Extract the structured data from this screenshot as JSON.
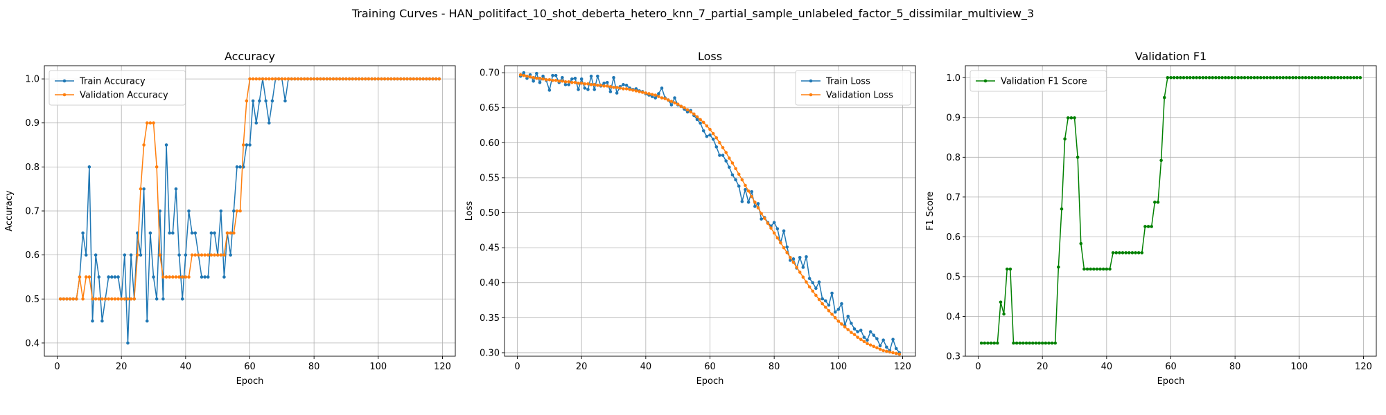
{
  "suptitle": "Training Curves - HAN_politifact_10_shot_deberta_hetero_knn_7_partial_sample_unlabeled_factor_5_dissimilar_multiview_3",
  "colors": {
    "blue": "#1f77b4",
    "orange": "#ff7f0e",
    "green": "#008000",
    "grid": "#b0b0b0"
  },
  "chart_data": [
    {
      "type": "line",
      "title": "Accuracy",
      "xlabel": "Epoch",
      "ylabel": "Accuracy",
      "xlim": [
        -4,
        124
      ],
      "ylim": [
        0.37,
        1.03
      ],
      "xticks": [
        0,
        20,
        40,
        60,
        80,
        100,
        120
      ],
      "yticks": [
        0.4,
        0.5,
        0.6,
        0.7,
        0.8,
        0.9,
        1.0
      ],
      "ytick_format": 1,
      "grid": true,
      "legend": "upper-left",
      "series": [
        {
          "name": "Train Accuracy",
          "color": "#1f77b4",
          "x_start": 1,
          "values": [
            0.5,
            0.5,
            0.5,
            0.5,
            0.5,
            0.5,
            0.55,
            0.65,
            0.6,
            0.8,
            0.45,
            0.6,
            0.55,
            0.45,
            0.5,
            0.55,
            0.55,
            0.55,
            0.55,
            0.5,
            0.6,
            0.4,
            0.6,
            0.5,
            0.65,
            0.6,
            0.75,
            0.45,
            0.65,
            0.55,
            0.5,
            0.7,
            0.5,
            0.85,
            0.65,
            0.65,
            0.75,
            0.6,
            0.5,
            0.6,
            0.7,
            0.65,
            0.65,
            0.6,
            0.55,
            0.55,
            0.55,
            0.65,
            0.65,
            0.6,
            0.7,
            0.55,
            0.65,
            0.6,
            0.7,
            0.8,
            0.8,
            0.8,
            0.85,
            0.85,
            0.95,
            0.9,
            0.95,
            1.0,
            0.95,
            0.9,
            0.95,
            1.0,
            1.0,
            1.0,
            0.95,
            1.0,
            1.0,
            1.0,
            1.0,
            1.0,
            1.0,
            1.0,
            1.0,
            1.0,
            1.0,
            1.0,
            1.0,
            1.0,
            1.0,
            1.0,
            1.0,
            1.0,
            1.0,
            1.0,
            1.0,
            1.0,
            1.0,
            1.0,
            1.0,
            1.0,
            1.0,
            1.0,
            1.0,
            1.0,
            1.0,
            1.0,
            1.0,
            1.0,
            1.0,
            1.0,
            1.0,
            1.0,
            1.0,
            1.0,
            1.0,
            1.0,
            1.0,
            1.0,
            1.0,
            1.0,
            1.0,
            1.0,
            1.0
          ]
        },
        {
          "name": "Validation Accuracy",
          "color": "#ff7f0e",
          "x_start": 1,
          "values": [
            0.5,
            0.5,
            0.5,
            0.5,
            0.5,
            0.5,
            0.55,
            0.5,
            0.55,
            0.55,
            0.5,
            0.5,
            0.5,
            0.5,
            0.5,
            0.5,
            0.5,
            0.5,
            0.5,
            0.5,
            0.5,
            0.5,
            0.5,
            0.5,
            0.6,
            0.75,
            0.85,
            0.9,
            0.9,
            0.9,
            0.8,
            0.6,
            0.55,
            0.55,
            0.55,
            0.55,
            0.55,
            0.55,
            0.55,
            0.55,
            0.55,
            0.6,
            0.6,
            0.6,
            0.6,
            0.6,
            0.6,
            0.6,
            0.6,
            0.6,
            0.6,
            0.6,
            0.65,
            0.65,
            0.65,
            0.7,
            0.7,
            0.85,
            0.95,
            1.0,
            1.0,
            1.0,
            1.0,
            1.0,
            1.0,
            1.0,
            1.0,
            1.0,
            1.0,
            1.0,
            1.0,
            1.0,
            1.0,
            1.0,
            1.0,
            1.0,
            1.0,
            1.0,
            1.0,
            1.0,
            1.0,
            1.0,
            1.0,
            1.0,
            1.0,
            1.0,
            1.0,
            1.0,
            1.0,
            1.0,
            1.0,
            1.0,
            1.0,
            1.0,
            1.0,
            1.0,
            1.0,
            1.0,
            1.0,
            1.0,
            1.0,
            1.0,
            1.0,
            1.0,
            1.0,
            1.0,
            1.0,
            1.0,
            1.0,
            1.0,
            1.0,
            1.0,
            1.0,
            1.0,
            1.0,
            1.0,
            1.0,
            1.0,
            1.0
          ]
        }
      ]
    },
    {
      "type": "line",
      "title": "Loss",
      "xlabel": "Epoch",
      "ylabel": "Loss",
      "xlim": [
        -4,
        124
      ],
      "ylim": [
        0.295,
        0.71
      ],
      "xticks": [
        0,
        20,
        40,
        60,
        80,
        100,
        120
      ],
      "yticks": [
        0.3,
        0.35,
        0.4,
        0.45,
        0.5,
        0.55,
        0.6,
        0.65,
        0.7
      ],
      "ytick_format": 2,
      "grid": true,
      "legend": "upper-right",
      "series": [
        {
          "name": "Train Loss",
          "color": "#1f77b4",
          "x_start": 1,
          "values": [
            0.695,
            0.7,
            0.692,
            0.697,
            0.688,
            0.699,
            0.686,
            0.695,
            0.689,
            0.675,
            0.696,
            0.696,
            0.686,
            0.693,
            0.683,
            0.683,
            0.691,
            0.692,
            0.676,
            0.691,
            0.678,
            0.676,
            0.695,
            0.676,
            0.695,
            0.681,
            0.685,
            0.686,
            0.673,
            0.693,
            0.671,
            0.68,
            0.683,
            0.682,
            0.678,
            0.676,
            0.677,
            0.674,
            0.673,
            0.67,
            0.668,
            0.666,
            0.664,
            0.67,
            0.678,
            0.664,
            0.661,
            0.654,
            0.664,
            0.654,
            0.652,
            0.648,
            0.644,
            0.646,
            0.639,
            0.633,
            0.628,
            0.617,
            0.609,
            0.611,
            0.605,
            0.594,
            0.582,
            0.582,
            0.574,
            0.565,
            0.554,
            0.547,
            0.538,
            0.516,
            0.533,
            0.515,
            0.53,
            0.509,
            0.513,
            0.491,
            0.493,
            0.486,
            0.481,
            0.486,
            0.477,
            0.457,
            0.474,
            0.451,
            0.432,
            0.434,
            0.421,
            0.436,
            0.422,
            0.437,
            0.406,
            0.4,
            0.392,
            0.401,
            0.377,
            0.374,
            0.368,
            0.385,
            0.358,
            0.362,
            0.37,
            0.339,
            0.352,
            0.342,
            0.334,
            0.33,
            0.332,
            0.322,
            0.318,
            0.33,
            0.325,
            0.32,
            0.31,
            0.318,
            0.308,
            0.303,
            0.319,
            0.306,
            0.3
          ]
        },
        {
          "name": "Validation Loss",
          "color": "#ff7f0e",
          "x_start": 1,
          "values": [
            0.697,
            0.696,
            0.695,
            0.694,
            0.693,
            0.692,
            0.692,
            0.691,
            0.69,
            0.69,
            0.689,
            0.689,
            0.688,
            0.688,
            0.687,
            0.687,
            0.686,
            0.686,
            0.685,
            0.685,
            0.684,
            0.684,
            0.683,
            0.683,
            0.682,
            0.682,
            0.681,
            0.681,
            0.68,
            0.679,
            0.679,
            0.678,
            0.677,
            0.677,
            0.676,
            0.675,
            0.674,
            0.673,
            0.672,
            0.671,
            0.67,
            0.669,
            0.668,
            0.666,
            0.664,
            0.663,
            0.661,
            0.659,
            0.657,
            0.655,
            0.652,
            0.65,
            0.647,
            0.644,
            0.641,
            0.637,
            0.633,
            0.629,
            0.624,
            0.619,
            0.613,
            0.607,
            0.6,
            0.593,
            0.586,
            0.578,
            0.571,
            0.563,
            0.555,
            0.547,
            0.539,
            0.531,
            0.523,
            0.515,
            0.507,
            0.499,
            0.492,
            0.485,
            0.478,
            0.471,
            0.464,
            0.457,
            0.45,
            0.443,
            0.436,
            0.429,
            0.422,
            0.415,
            0.408,
            0.401,
            0.394,
            0.388,
            0.382,
            0.376,
            0.37,
            0.365,
            0.36,
            0.355,
            0.35,
            0.345,
            0.341,
            0.337,
            0.333,
            0.329,
            0.326,
            0.322,
            0.319,
            0.316,
            0.313,
            0.311,
            0.309,
            0.307,
            0.305,
            0.303,
            0.302,
            0.301,
            0.3,
            0.299,
            0.298
          ]
        }
      ]
    },
    {
      "type": "line",
      "title": "Validation F1",
      "xlabel": "Epoch",
      "ylabel": "F1 Score",
      "xlim": [
        -4,
        124
      ],
      "ylim": [
        0.3,
        1.03
      ],
      "xticks": [
        0,
        20,
        40,
        60,
        80,
        100,
        120
      ],
      "yticks": [
        0.3,
        0.4,
        0.5,
        0.6,
        0.7,
        0.8,
        0.9,
        1.0
      ],
      "ytick_format": 1,
      "grid": true,
      "legend": "upper-left",
      "series": [
        {
          "name": "Validation F1 Score",
          "color": "#008000",
          "x_start": 1,
          "values": [
            0.333,
            0.333,
            0.333,
            0.333,
            0.333,
            0.333,
            0.436,
            0.406,
            0.519,
            0.519,
            0.333,
            0.333,
            0.333,
            0.333,
            0.333,
            0.333,
            0.333,
            0.333,
            0.333,
            0.333,
            0.333,
            0.333,
            0.333,
            0.333,
            0.524,
            0.67,
            0.846,
            0.899,
            0.899,
            0.899,
            0.8,
            0.583,
            0.519,
            0.519,
            0.519,
            0.519,
            0.519,
            0.519,
            0.519,
            0.519,
            0.519,
            0.56,
            0.56,
            0.56,
            0.56,
            0.56,
            0.56,
            0.56,
            0.56,
            0.56,
            0.56,
            0.626,
            0.626,
            0.626,
            0.687,
            0.687,
            0.792,
            0.95,
            1.0,
            1.0,
            1.0,
            1.0,
            1.0,
            1.0,
            1.0,
            1.0,
            1.0,
            1.0,
            1.0,
            1.0,
            1.0,
            1.0,
            1.0,
            1.0,
            1.0,
            1.0,
            1.0,
            1.0,
            1.0,
            1.0,
            1.0,
            1.0,
            1.0,
            1.0,
            1.0,
            1.0,
            1.0,
            1.0,
            1.0,
            1.0,
            1.0,
            1.0,
            1.0,
            1.0,
            1.0,
            1.0,
            1.0,
            1.0,
            1.0,
            1.0,
            1.0,
            1.0,
            1.0,
            1.0,
            1.0,
            1.0,
            1.0,
            1.0,
            1.0,
            1.0,
            1.0,
            1.0,
            1.0,
            1.0,
            1.0,
            1.0,
            1.0,
            1.0,
            1.0
          ]
        }
      ]
    }
  ]
}
